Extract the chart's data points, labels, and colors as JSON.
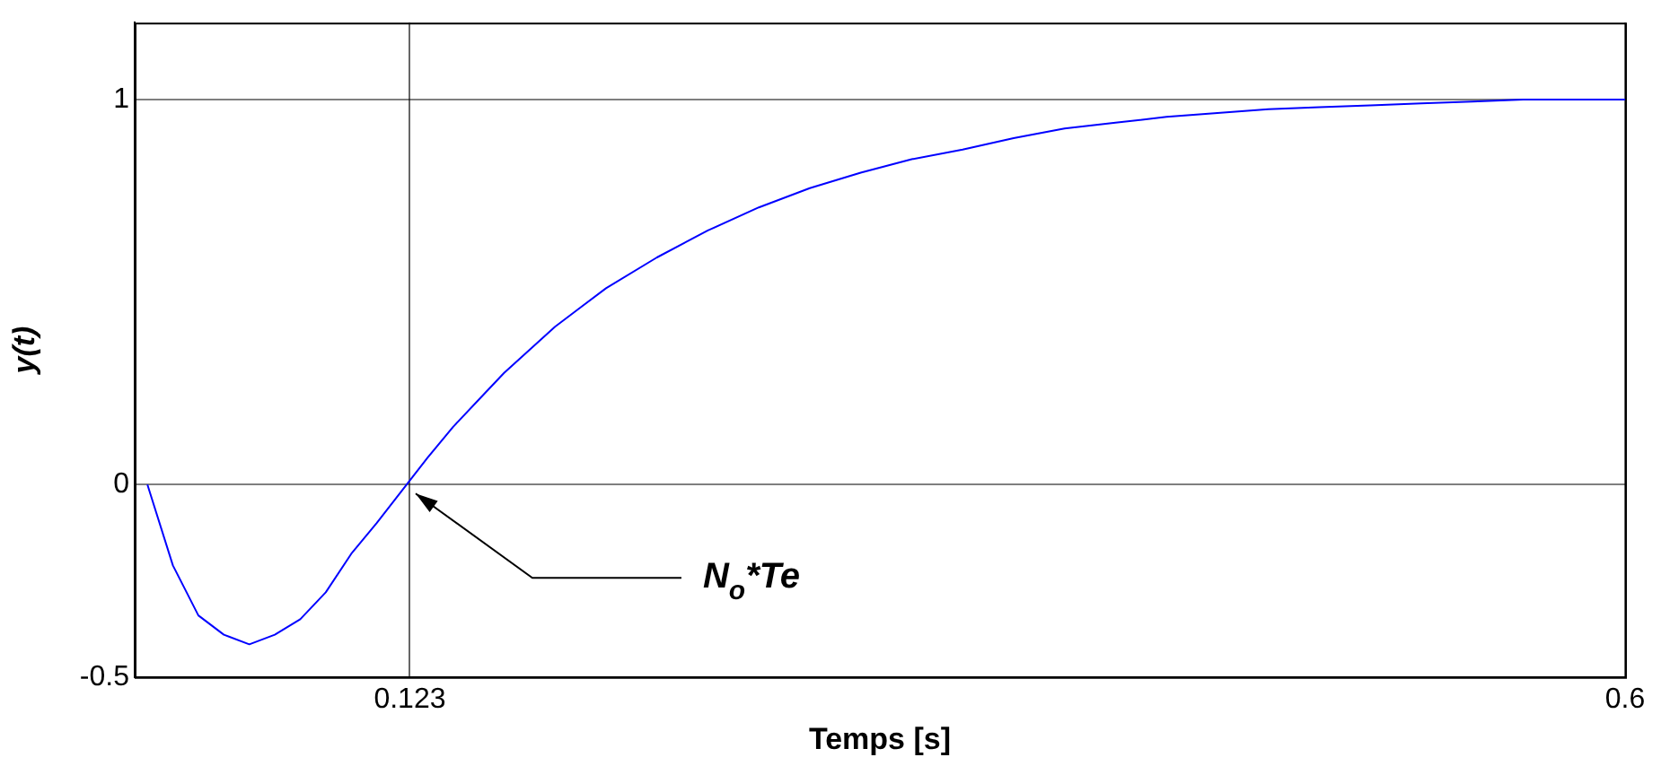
{
  "chart_data": {
    "type": "line",
    "xlabel": "Temps [s]",
    "ylabel": "y(t)",
    "x": [
      0.02,
      0.03,
      0.04,
      0.05,
      0.06,
      0.07,
      0.08,
      0.09,
      0.1,
      0.11,
      0.12,
      0.13,
      0.14,
      0.15,
      0.16,
      0.17,
      0.18,
      0.19,
      0.2,
      0.22,
      0.24,
      0.26,
      0.28,
      0.3,
      0.32,
      0.34,
      0.36,
      0.38,
      0.4,
      0.42,
      0.44,
      0.46,
      0.48,
      0.5,
      0.52,
      0.54,
      0.56,
      0.58,
      0.6
    ],
    "series": [
      {
        "color": "#0000ff",
        "values": [
          0,
          -0.21,
          -0.34,
          -0.39,
          -0.415,
          -0.39,
          -0.35,
          -0.28,
          -0.18,
          -0.1,
          -0.015,
          0.07,
          0.15,
          0.22,
          0.29,
          0.35,
          0.41,
          0.46,
          0.51,
          0.59,
          0.66,
          0.72,
          0.77,
          0.81,
          0.845,
          0.87,
          0.9,
          0.925,
          0.94,
          0.955,
          0.965,
          0.975,
          0.98,
          0.985,
          0.99,
          0.995,
          1,
          1,
          1
        ]
      }
    ],
    "xlim": [
      0.015,
      0.6
    ],
    "xticks": [
      0.123,
      0.6
    ],
    "ylim": [
      -0.5,
      1.2
    ],
    "yticks": [
      -0.5,
      0,
      1
    ],
    "grid": true,
    "legend": false,
    "marker": "none",
    "line_style": "solid",
    "annotations": [
      "N$_{o}$*Te"
    ]
  }
}
